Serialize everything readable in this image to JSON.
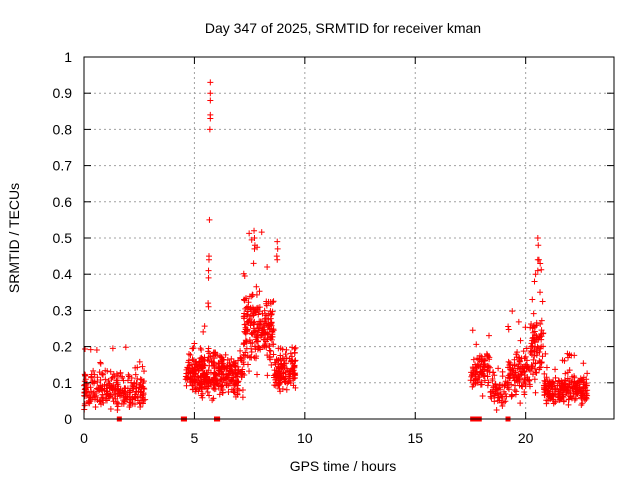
{
  "chart_data": {
    "type": "scatter",
    "title": "Day 347 of 2025, SRMTID for receiver kman",
    "xlabel": "GPS time / hours",
    "ylabel": "SRMTID / TECUs",
    "xlim": [
      0,
      24
    ],
    "ylim": [
      0,
      1
    ],
    "x_ticks": [
      0,
      5,
      10,
      15,
      20
    ],
    "x_tick_labels": [
      "0",
      "5",
      "10",
      "15",
      "20"
    ],
    "y_ticks": [
      0,
      0.1,
      0.2,
      0.3,
      0.4,
      0.5,
      0.6,
      0.7,
      0.8,
      0.9,
      1
    ],
    "y_tick_labels": [
      "0",
      "0.1",
      "0.2",
      "0.3",
      "0.4",
      "0.5",
      "0.6",
      "0.7",
      "0.8",
      "0.9",
      "1"
    ],
    "grid": true,
    "legend": "none",
    "marker": "plus",
    "color": "#ff0000",
    "series": [
      {
        "name": "SRMTID",
        "clusters": [
          {
            "x_range": [
              0.0,
              2.8
            ],
            "y_base": 0.08,
            "y_spread": 0.05,
            "count": 260,
            "spike_max": 0.2
          },
          {
            "x_range": [
              4.6,
              5.5
            ],
            "y_base": 0.12,
            "y_spread": 0.06,
            "count": 150,
            "spike_max": 0.26
          },
          {
            "x_range": [
              5.5,
              6.0
            ],
            "y_base": 0.12,
            "y_spread": 0.06,
            "count": 70,
            "spike_max": 0.2
          },
          {
            "x_range": [
              6.0,
              7.2
            ],
            "y_base": 0.12,
            "y_spread": 0.05,
            "count": 150,
            "spike_max": 0.2
          },
          {
            "x_range": [
              7.2,
              8.6
            ],
            "y_base": 0.25,
            "y_spread": 0.1,
            "count": 220,
            "spike_max": 0.52
          },
          {
            "x_range": [
              8.6,
              9.6
            ],
            "y_base": 0.13,
            "y_spread": 0.05,
            "count": 130,
            "spike_max": 0.2
          },
          {
            "x_range": [
              17.5,
              18.4
            ],
            "y_base": 0.14,
            "y_spread": 0.05,
            "count": 90,
            "spike_max": 0.25
          },
          {
            "x_range": [
              18.4,
              19.2
            ],
            "y_base": 0.08,
            "y_spread": 0.05,
            "count": 60,
            "spike_max": 0.14
          },
          {
            "x_range": [
              19.2,
              20.2
            ],
            "y_base": 0.12,
            "y_spread": 0.06,
            "count": 110,
            "spike_max": 0.3
          },
          {
            "x_range": [
              20.2,
              20.8
            ],
            "y_base": 0.2,
            "y_spread": 0.08,
            "count": 80,
            "spike_max": 0.5
          },
          {
            "x_range": [
              20.8,
              22.8
            ],
            "y_base": 0.08,
            "y_spread": 0.04,
            "count": 240,
            "spike_max": 0.19
          }
        ],
        "spikes": [
          {
            "x": 5.72,
            "y": 0.93
          },
          {
            "x": 5.72,
            "y": 0.9
          },
          {
            "x": 5.72,
            "y": 0.88
          },
          {
            "x": 5.72,
            "y": 0.84
          },
          {
            "x": 5.72,
            "y": 0.83
          },
          {
            "x": 5.7,
            "y": 0.8
          },
          {
            "x": 5.68,
            "y": 0.55
          },
          {
            "x": 5.66,
            "y": 0.45
          },
          {
            "x": 5.66,
            "y": 0.44
          },
          {
            "x": 5.64,
            "y": 0.41
          },
          {
            "x": 5.64,
            "y": 0.39
          },
          {
            "x": 5.62,
            "y": 0.32
          },
          {
            "x": 5.64,
            "y": 0.31
          },
          {
            "x": 7.7,
            "y": 0.52
          },
          {
            "x": 7.72,
            "y": 0.5
          },
          {
            "x": 7.74,
            "y": 0.48
          },
          {
            "x": 7.72,
            "y": 0.47
          },
          {
            "x": 7.68,
            "y": 0.43
          },
          {
            "x": 8.75,
            "y": 0.49
          },
          {
            "x": 8.77,
            "y": 0.47
          },
          {
            "x": 8.73,
            "y": 0.45
          },
          {
            "x": 8.75,
            "y": 0.44
          },
          {
            "x": 20.55,
            "y": 0.5
          },
          {
            "x": 20.57,
            "y": 0.48
          },
          {
            "x": 20.55,
            "y": 0.44
          },
          {
            "x": 20.6,
            "y": 0.44
          },
          {
            "x": 20.55,
            "y": 0.41
          },
          {
            "x": 20.45,
            "y": 0.4
          },
          {
            "x": 20.4,
            "y": 0.38
          },
          {
            "x": 20.65,
            "y": 0.35
          },
          {
            "x": 20.3,
            "y": 0.33
          }
        ],
        "zero_points": [
          1.6,
          4.5,
          4.55,
          6.0,
          6.05,
          17.6,
          17.65,
          17.85,
          17.9,
          19.2
        ]
      }
    ]
  }
}
